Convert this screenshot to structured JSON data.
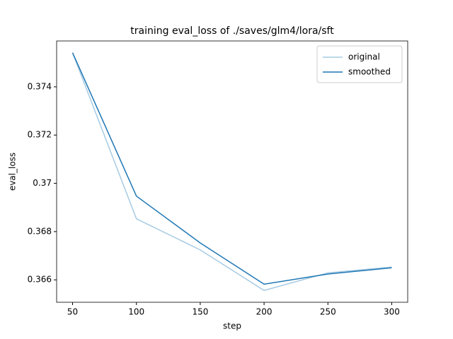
{
  "chart_data": {
    "type": "line",
    "title": "training eval_loss of ./saves/glm4/lora/sft",
    "x_label": "step",
    "y_label": "eval_loss",
    "x": [
      50,
      100,
      150,
      200,
      250,
      300
    ],
    "series": [
      {
        "name": "original",
        "color": "#a6cbe3",
        "values": [
          0.37541,
          0.36853,
          0.36724,
          0.36556,
          0.36629,
          0.36653
        ]
      },
      {
        "name": "smoothed",
        "color": "#1f77b4",
        "values": [
          0.37541,
          0.36947,
          0.36753,
          0.36582,
          0.36624,
          0.3665
        ]
      }
    ],
    "xlim": [
      37.5,
      312.5
    ],
    "xticks": [
      50,
      100,
      150,
      200,
      250,
      300
    ],
    "ylim": [
      0.36507,
      0.3759
    ],
    "yticks": [
      0.366,
      0.368,
      0.37,
      0.372,
      0.374
    ],
    "legend": "upper right",
    "grid": false
  }
}
